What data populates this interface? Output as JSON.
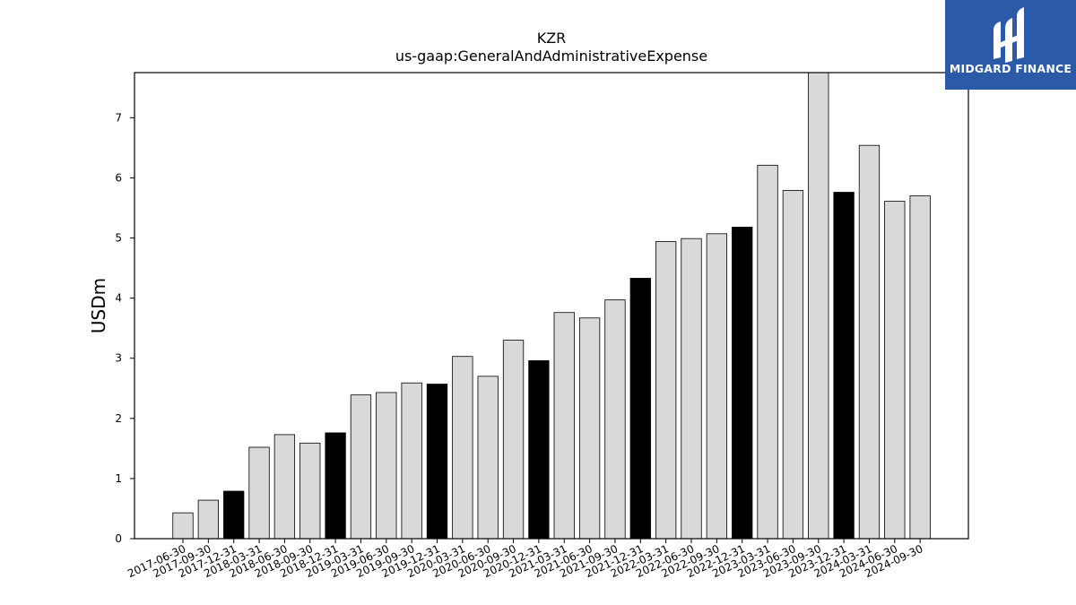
{
  "logo": {
    "text": "MIDGARD FINANCE",
    "color": "#2a5aa8"
  },
  "chart_data": {
    "type": "bar",
    "title": "KZR",
    "subtitle": "us-gaap:GeneralAndAdministrativeExpense",
    "xlabel": "",
    "ylabel": "USDm",
    "ylim": [
      0,
      7.75
    ],
    "yticks": [
      0,
      1,
      2,
      3,
      4,
      5,
      6,
      7
    ],
    "grid": false,
    "colors": {
      "quarter": "#d9d9d9",
      "year_end": "#000000",
      "edge": "#000000"
    },
    "categories": [
      "2017-06-30",
      "2017-09-30",
      "2017-12-31",
      "2018-03-31",
      "2018-06-30",
      "2018-09-30",
      "2018-12-31",
      "2019-03-31",
      "2019-06-30",
      "2019-09-30",
      "2019-12-31",
      "2020-03-31",
      "2020-06-30",
      "2020-09-30",
      "2020-12-31",
      "2021-03-31",
      "2021-06-30",
      "2021-09-30",
      "2021-12-31",
      "2022-03-31",
      "2022-06-30",
      "2022-09-30",
      "2022-12-31",
      "2023-03-31",
      "2023-06-30",
      "2023-09-30",
      "2023-12-31",
      "2024-03-31",
      "2024-06-30",
      "2024-09-30"
    ],
    "values": [
      0.43,
      0.64,
      0.79,
      1.52,
      1.73,
      1.59,
      1.76,
      2.39,
      2.43,
      2.59,
      2.57,
      3.03,
      2.7,
      3.3,
      2.96,
      3.76,
      3.67,
      3.97,
      4.33,
      4.94,
      4.99,
      5.07,
      5.18,
      6.21,
      5.79,
      7.8,
      5.76,
      6.54,
      5.61,
      5.7
    ]
  }
}
